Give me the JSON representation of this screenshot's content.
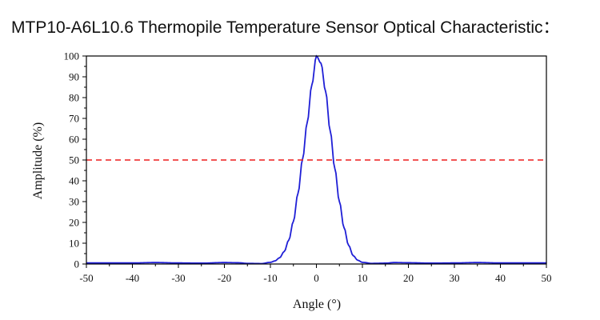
{
  "title": "MTP10-A6L10.6 Thermopile Temperature Sensor Optical Characteristic：",
  "chart_data": {
    "type": "line",
    "title": "MTP10-A6L10.6 Thermopile Temperature Sensor Optical Characteristic：",
    "xlabel": "Angle (°)",
    "ylabel": "Amplitude (%)",
    "xlim": [
      -50,
      50
    ],
    "ylim": [
      0,
      100
    ],
    "xticks": [
      -50,
      -40,
      -30,
      -20,
      -10,
      0,
      10,
      20,
      30,
      40,
      50
    ],
    "yticks": [
      0,
      10,
      20,
      30,
      40,
      50,
      60,
      70,
      80,
      90,
      100
    ],
    "grid": false,
    "series": [
      {
        "color": "#1f1fd6",
        "style": "solid",
        "x": [
          -50,
          -40,
          -35,
          -30,
          -25,
          -20,
          -17,
          -15,
          -12,
          -10,
          -9,
          -8,
          -7,
          -6,
          -5,
          -4,
          -3,
          -2,
          -1,
          0,
          1,
          2,
          3,
          4,
          5,
          6,
          7,
          8,
          9,
          10,
          12,
          15,
          17,
          20,
          25,
          30,
          35,
          40,
          50
        ],
        "y": [
          0.5,
          0.5,
          0.7,
          0.5,
          0.4,
          0.7,
          0.6,
          0.3,
          0.2,
          0.8,
          1.5,
          3,
          6,
          11.5,
          20.5,
          34,
          50.5,
          68,
          86,
          100,
          96.5,
          83,
          64,
          46,
          30,
          17.5,
          9,
          4,
          1.8,
          0.8,
          0.3,
          0.4,
          0.7,
          0.6,
          0.4,
          0.5,
          0.7,
          0.5,
          0.5
        ]
      },
      {
        "color": "#ee1c1c",
        "style": "dashed",
        "x": [
          -50,
          50
        ],
        "y": [
          50,
          50
        ]
      }
    ]
  }
}
